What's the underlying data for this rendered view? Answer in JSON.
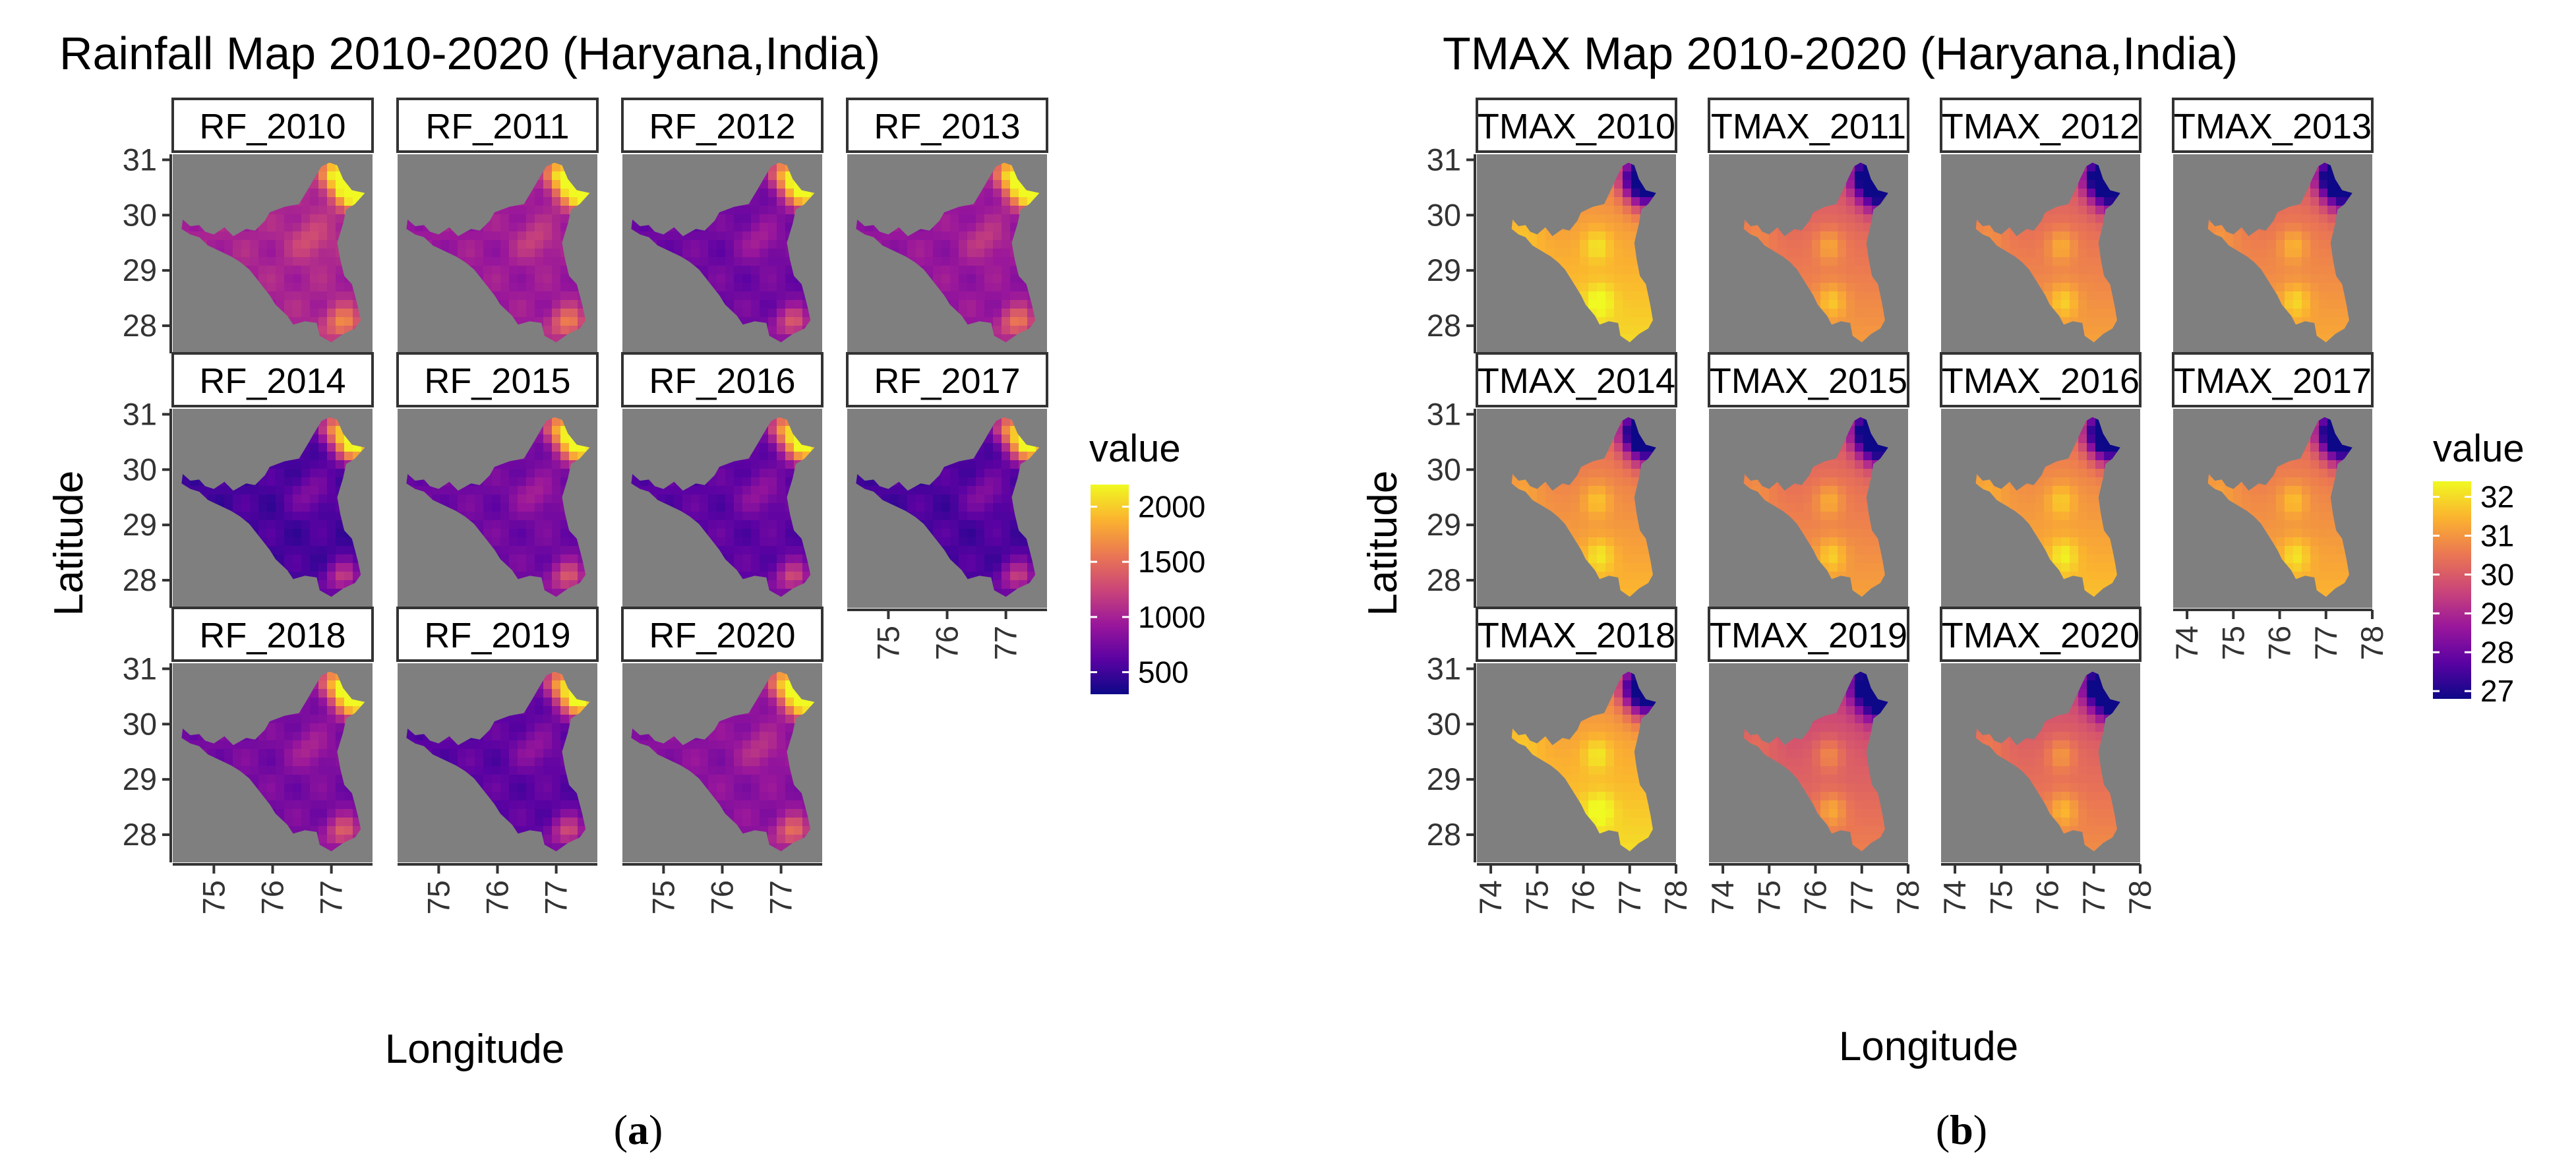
{
  "colors": {
    "panel_bg": "#7f7f7f",
    "strip_bg": "#ffffff",
    "strip_border": "#333333",
    "palette": [
      "#0d0887",
      "#5b02a3",
      "#9a179b",
      "#cb4678",
      "#eb7852",
      "#fbb32f",
      "#f0f921"
    ]
  },
  "chart_data": [
    {
      "type": "heatmap",
      "subtype": "faceted-raster-map",
      "title": "Rainfall Map 2010-2020 (Haryana,India)",
      "caption_letter": "a",
      "caption": "(a)",
      "xlabel": "Longitude",
      "ylabel": "Latitude",
      "facets": [
        "RF_2010",
        "RF_2011",
        "RF_2012",
        "RF_2013",
        "RF_2014",
        "RF_2015",
        "RF_2016",
        "RF_2017",
        "RF_2018",
        "RF_2019",
        "RF_2020"
      ],
      "facet_mean_level": [
        0.38,
        0.34,
        0.22,
        0.32,
        0.12,
        0.22,
        0.17,
        0.13,
        0.24,
        0.17,
        0.29
      ],
      "ncol": 4,
      "x_ticks": [
        "75",
        "76",
        "77"
      ],
      "y_ticks": [
        "28",
        "29",
        "30",
        "31"
      ],
      "xlim": [
        74.3,
        77.7
      ],
      "ylim": [
        27.5,
        31.1
      ],
      "legend": {
        "title": "value",
        "labels": [
          "2000",
          "1500",
          "1000",
          "500"
        ],
        "values": [
          2000,
          1500,
          1000,
          500
        ],
        "range": [
          300,
          2200
        ]
      }
    },
    {
      "type": "heatmap",
      "subtype": "faceted-raster-map",
      "title": "TMAX Map 2010-2020 (Haryana,India)",
      "caption_letter": "b",
      "caption": "(b)",
      "xlabel": "Longitude",
      "ylabel": "Latitude",
      "facets": [
        "TMAX_2010",
        "TMAX_2011",
        "TMAX_2012",
        "TMAX_2013",
        "TMAX_2014",
        "TMAX_2015",
        "TMAX_2016",
        "TMAX_2017",
        "TMAX_2018",
        "TMAX_2019",
        "TMAX_2020"
      ],
      "facet_mean_level": [
        0.82,
        0.66,
        0.68,
        0.7,
        0.74,
        0.68,
        0.76,
        0.73,
        0.83,
        0.58,
        0.62
      ],
      "ncol": 4,
      "x_ticks": [
        "74",
        "75",
        "76",
        "77",
        "78"
      ],
      "y_ticks": [
        "28",
        "29",
        "30",
        "31"
      ],
      "xlim": [
        73.7,
        78.0
      ],
      "ylim": [
        27.5,
        31.1
      ],
      "legend": {
        "title": "value",
        "labels": [
          "32",
          "31",
          "30",
          "29",
          "28",
          "27"
        ],
        "values": [
          32,
          31,
          30,
          29,
          28,
          27
        ],
        "range": [
          26.8,
          32.4
        ]
      }
    }
  ]
}
